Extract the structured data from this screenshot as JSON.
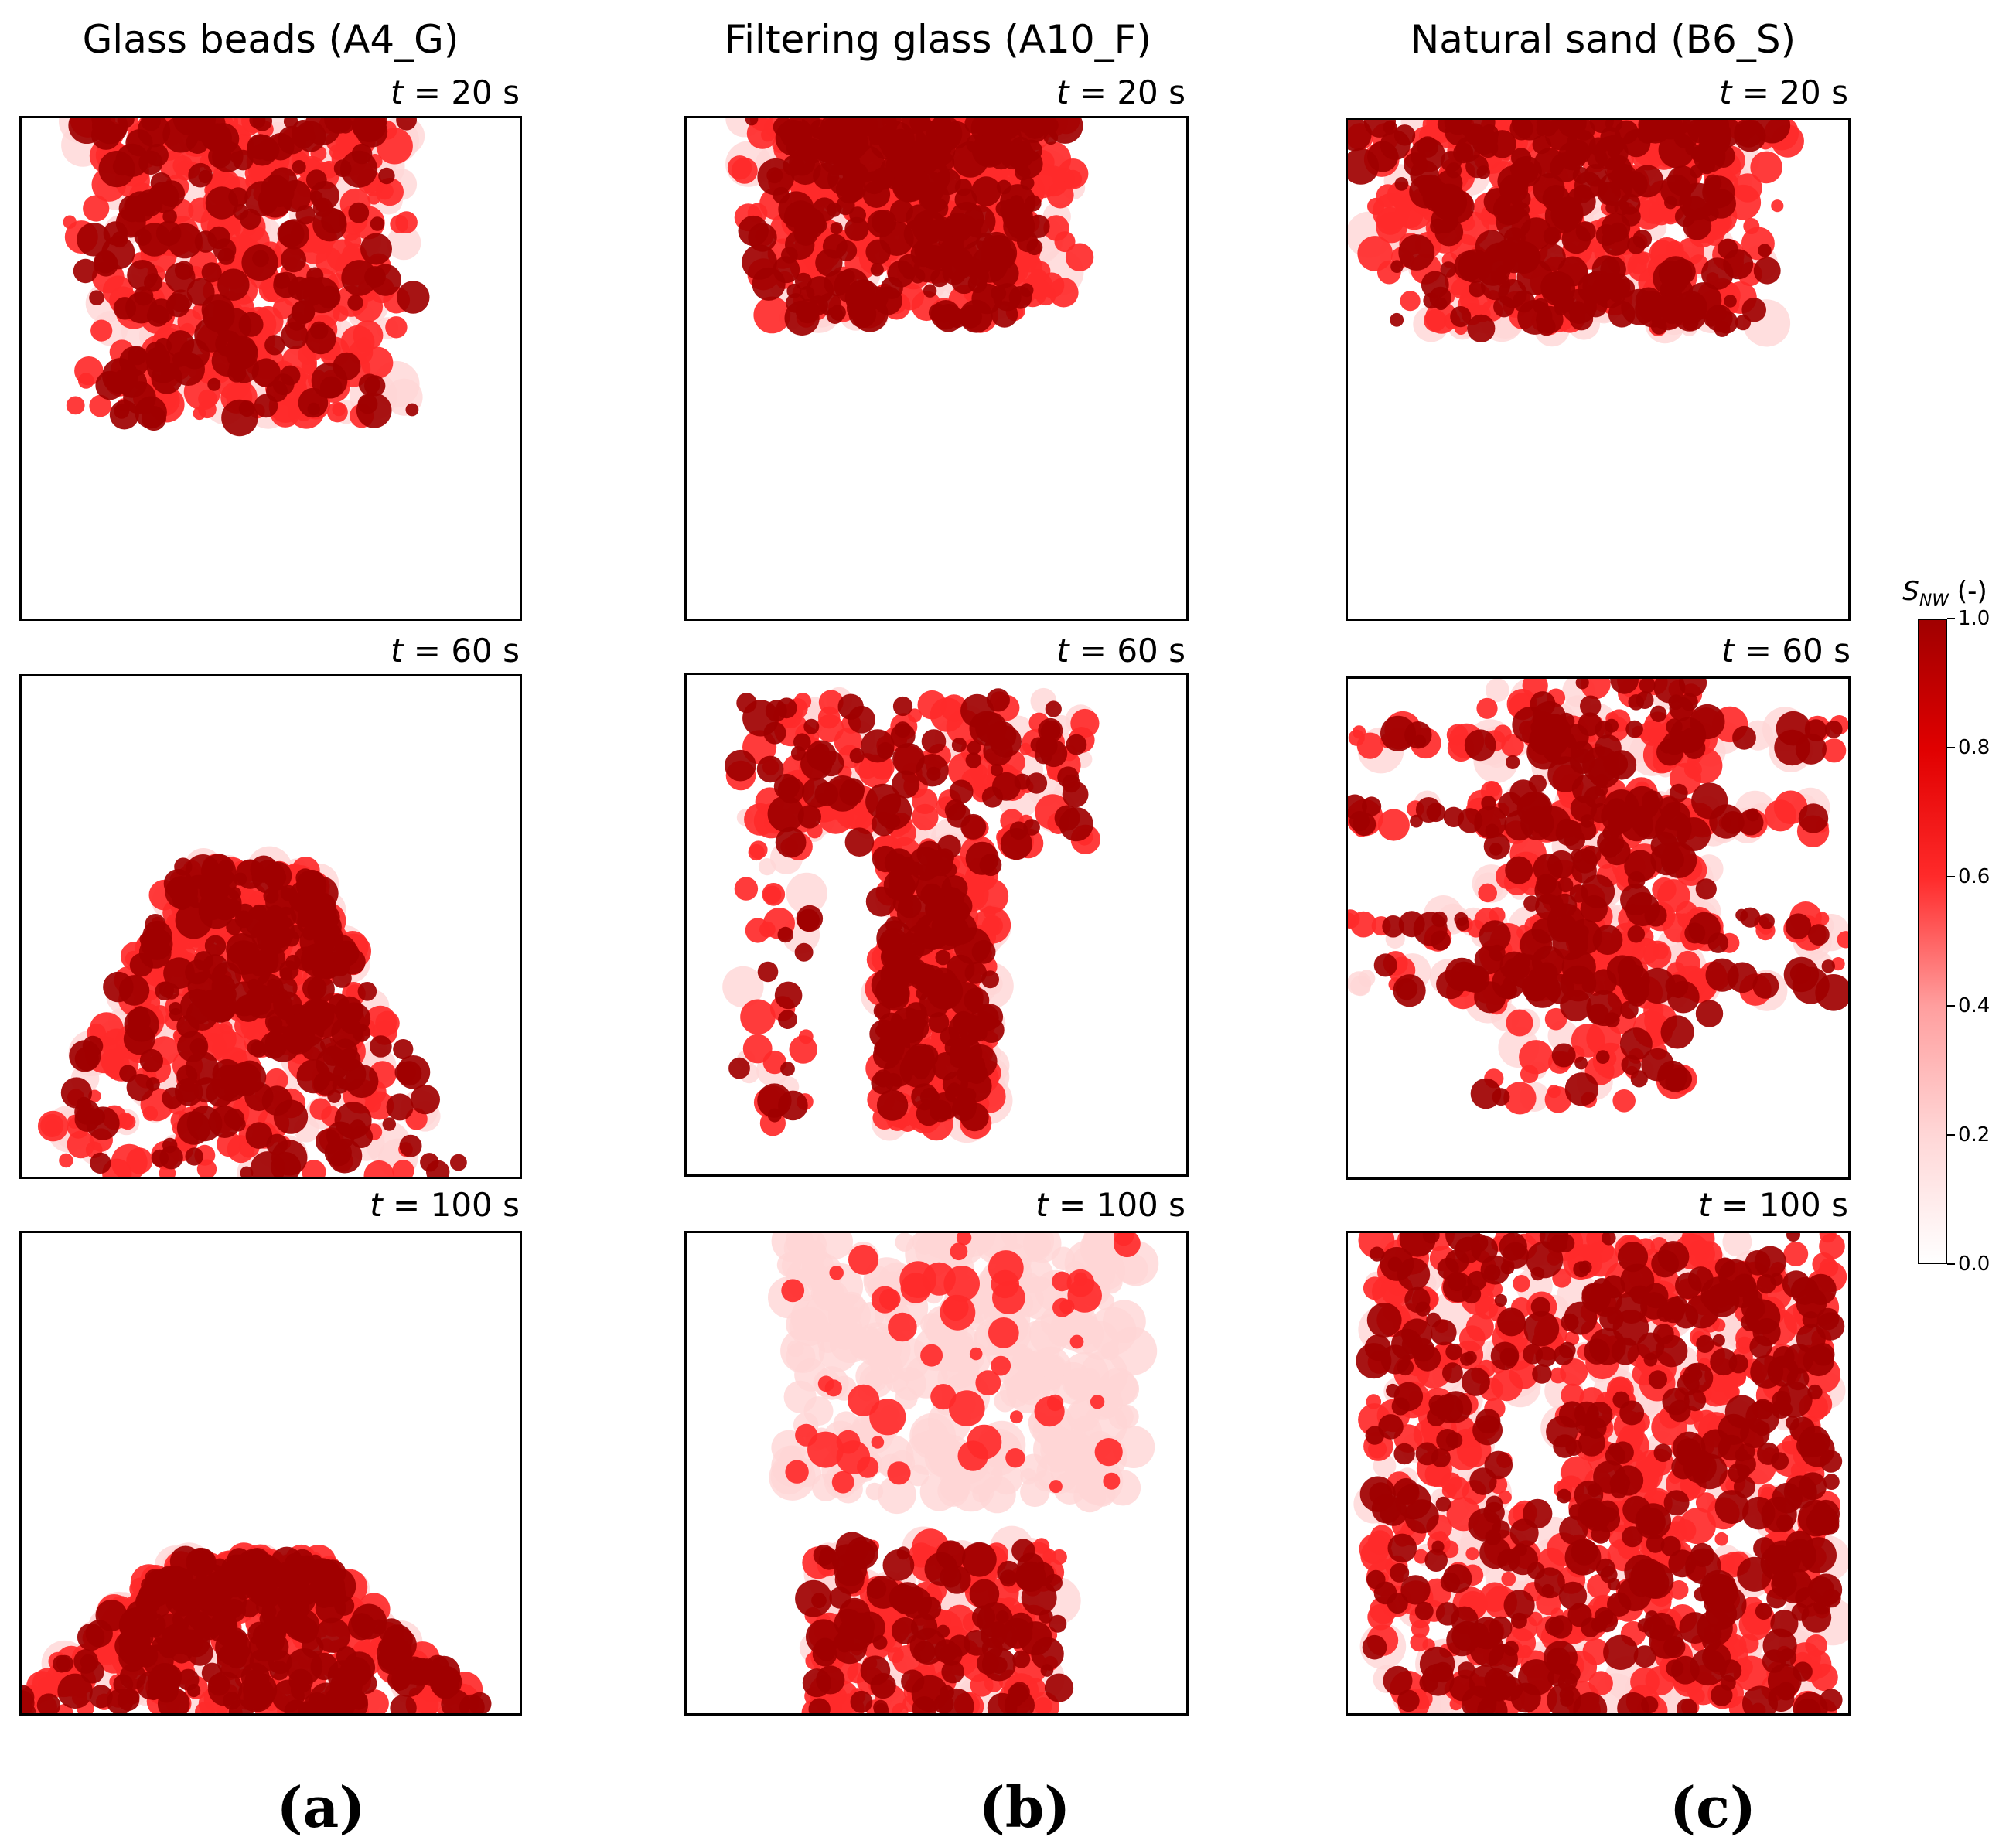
{
  "columns": [
    {
      "title": "Glass beads (A4_G)",
      "label": "(a)"
    },
    {
      "title": "Filtering glass (A10_F)",
      "label": "(b)"
    },
    {
      "title": "Natural sand (B6_S)",
      "label": "(c)"
    }
  ],
  "rows": [
    {
      "t_var": "t",
      "t_text": " = 20 s"
    },
    {
      "t_var": "t",
      "t_text": " = 60 s"
    },
    {
      "t_var": "t",
      "t_text": " = 100 s"
    }
  ],
  "colorbar": {
    "title_var": "S",
    "title_sub": "NW",
    "title_rest": " (-)",
    "ticks": [
      "0.0",
      "0.2",
      "0.4",
      "0.6",
      "0.8",
      "1.0"
    ],
    "tick_values": [
      0.0,
      0.2,
      0.4,
      0.6,
      0.8,
      1.0
    ],
    "colors": [
      "#ffffff",
      "#ffd6d6",
      "#ff9e9e",
      "#ff2a2a",
      "#e00000",
      "#a00000"
    ]
  },
  "chart_data": {
    "type": "heatmap",
    "variable": "S_NW",
    "zlim": [
      0,
      1
    ],
    "panels": [
      {
        "column": "Glass beads (A4_G)",
        "time_s": 20,
        "pattern": "plume-top",
        "spread": 0.45,
        "depth": 0.6
      },
      {
        "column": "Filtering glass (A10_F)",
        "time_s": 20,
        "pattern": "plume-top",
        "spread": 0.45,
        "depth": 0.4
      },
      {
        "column": "Natural sand (B6_S)",
        "time_s": 20,
        "pattern": "plume-top",
        "spread": 0.55,
        "depth": 0.42
      },
      {
        "column": "Glass beads (A4_G)",
        "time_s": 60,
        "pattern": "mound-bottom",
        "spread": 0.5,
        "depth": 0.62
      },
      {
        "column": "Filtering glass (A10_F)",
        "time_s": 60,
        "pattern": "column",
        "spread": 0.4,
        "depth": 0.85
      },
      {
        "column": "Natural sand (B6_S)",
        "time_s": 60,
        "pattern": "fingers",
        "spread": 0.6,
        "depth": 0.85
      },
      {
        "column": "Glass beads (A4_G)",
        "time_s": 100,
        "pattern": "mound-bottom",
        "spread": 0.55,
        "depth": 0.32
      },
      {
        "column": "Filtering glass (A10_F)",
        "time_s": 100,
        "pattern": "diffuse-bottom",
        "spread": 0.45,
        "depth": 0.35
      },
      {
        "column": "Natural sand (B6_S)",
        "time_s": 100,
        "pattern": "full",
        "spread": 0.7,
        "depth": 1.0
      }
    ]
  }
}
